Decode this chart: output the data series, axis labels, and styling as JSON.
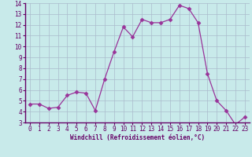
{
  "x": [
    0,
    1,
    2,
    3,
    4,
    5,
    6,
    7,
    8,
    9,
    10,
    11,
    12,
    13,
    14,
    15,
    16,
    17,
    18,
    19,
    20,
    21,
    22,
    23
  ],
  "y": [
    4.7,
    4.7,
    4.3,
    4.4,
    5.5,
    5.8,
    5.7,
    4.1,
    7.0,
    9.5,
    11.8,
    10.9,
    12.5,
    12.2,
    12.2,
    12.5,
    13.8,
    13.5,
    12.2,
    7.5,
    5.0,
    4.1,
    2.8,
    3.5
  ],
  "line_color": "#993399",
  "marker": "D",
  "marker_size": 2.5,
  "bg_color": "#c8eaea",
  "fig_bg_color": "#c8eaea",
  "grid_color": "#aabbcc",
  "xlabel": "Windchill (Refroidissement éolien,°C)",
  "ylim": [
    3,
    14
  ],
  "xlim_min": -0.5,
  "xlim_max": 23.5,
  "yticks": [
    3,
    4,
    5,
    6,
    7,
    8,
    9,
    10,
    11,
    12,
    13,
    14
  ],
  "xticks": [
    0,
    1,
    2,
    3,
    4,
    5,
    6,
    7,
    8,
    9,
    10,
    11,
    12,
    13,
    14,
    15,
    16,
    17,
    18,
    19,
    20,
    21,
    22,
    23
  ],
  "tick_color": "#660066",
  "spine_color": "#660066",
  "label_fontsize": 5.5,
  "tick_fontsize": 5.5
}
